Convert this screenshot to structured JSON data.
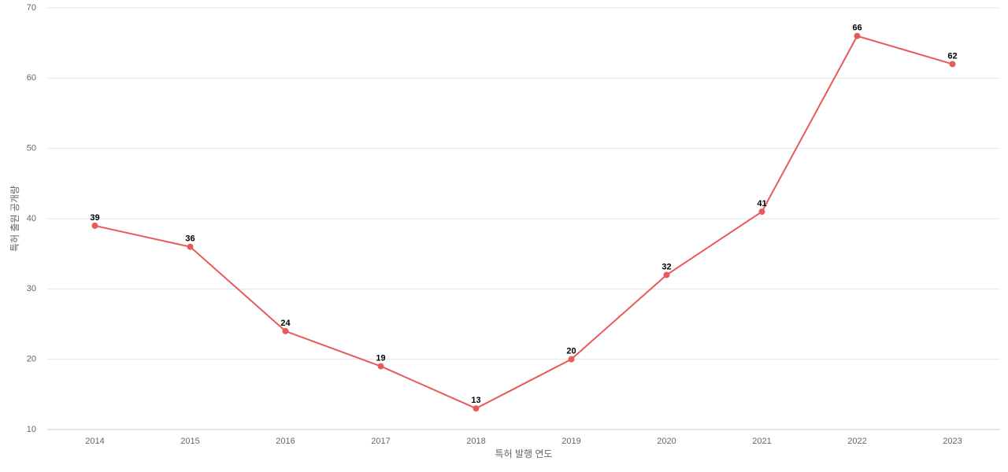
{
  "chart_data": {
    "type": "line",
    "x_label": "특허 발행 연도",
    "y_label": "특허 출원 공개량",
    "categories": [
      "2014",
      "2015",
      "2016",
      "2017",
      "2018",
      "2019",
      "2020",
      "2021",
      "2022",
      "2023"
    ],
    "series": [
      {
        "color": "#e8595a",
        "values": [
          39,
          36,
          24,
          19,
          13,
          20,
          32,
          41,
          66,
          62
        ]
      }
    ],
    "ylim": [
      10,
      70
    ],
    "yticks": [
      10,
      20,
      30,
      40,
      50,
      60,
      70
    ],
    "grid": true
  }
}
